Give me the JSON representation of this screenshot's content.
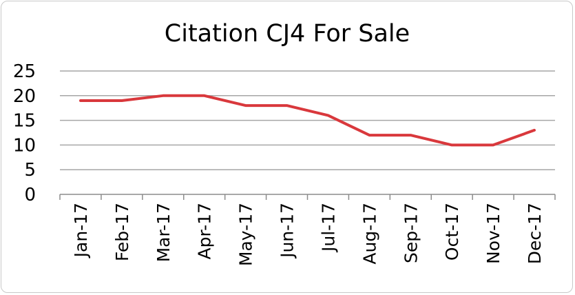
{
  "chart_data": {
    "type": "line",
    "title": "Citation CJ4 For Sale",
    "xlabel": "",
    "ylabel": "",
    "categories": [
      "Jan-17",
      "Feb-17",
      "Mar-17",
      "Apr-17",
      "May-17",
      "Jun-17",
      "Jul-17",
      "Aug-17",
      "Sep-17",
      "Oct-17",
      "Nov-17",
      "Dec-17"
    ],
    "series": [
      {
        "values": [
          19,
          19,
          20,
          20,
          18,
          18,
          16,
          12,
          12,
          10,
          10,
          13
        ],
        "color": "#d9383c"
      }
    ],
    "ylim": [
      0,
      25
    ],
    "yticks": [
      "0",
      "5",
      "10",
      "15",
      "20",
      "25"
    ],
    "grid": true,
    "legend": "none"
  }
}
